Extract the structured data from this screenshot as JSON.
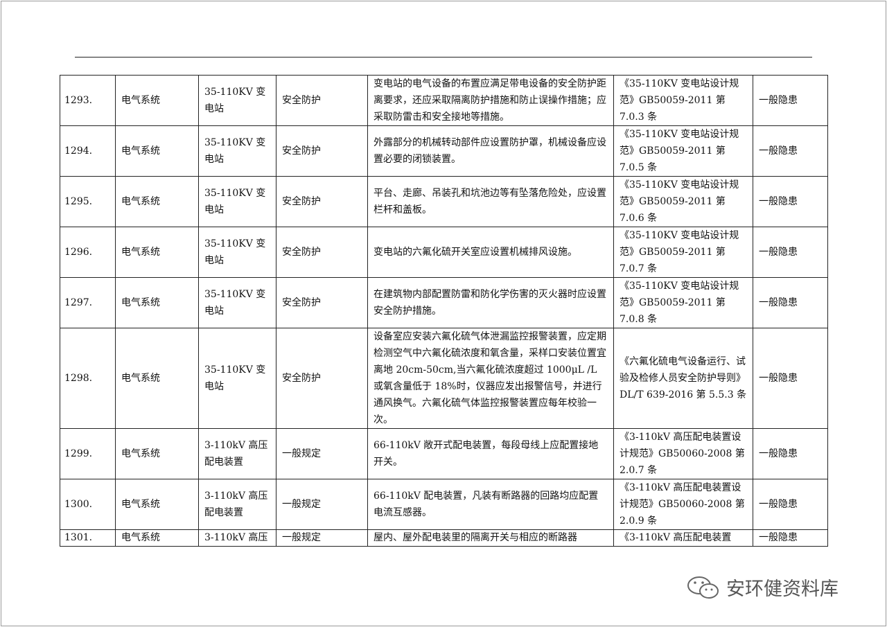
{
  "rows": [
    {
      "no": "1293.",
      "system": "电气系统",
      "facility": "35-110KV 变电站",
      "category": "安全防护",
      "requirement": "变电站的电气设备的布置应满足带电设备的安全防护距离要求，还应采取隔离防护措施和防止误操作措施；应采取防雷击和安全接地等措施。",
      "basis": "《35-110KV 变电站设计规范》GB50059-2011 第 7.0.3 条",
      "level": "一般隐患"
    },
    {
      "no": "1294.",
      "system": "电气系统",
      "facility": "35-110KV 变电站",
      "category": "安全防护",
      "requirement": "外露部分的机械转动部件应设置防护罩，机械设备应设置必要的闭锁装置。",
      "basis": "《35-110KV 变电站设计规范》GB50059-2011 第 7.0.5 条",
      "level": "一般隐患"
    },
    {
      "no": "1295.",
      "system": "电气系统",
      "facility": "35-110KV 变电站",
      "category": "安全防护",
      "requirement": "平台、走廊、吊装孔和坑池边等有坠落危险处，应设置栏杆和盖板。",
      "basis": "《35-110KV 变电站设计规范》GB50059-2011 第 7.0.6 条",
      "level": "一般隐患"
    },
    {
      "no": "1296.",
      "system": "电气系统",
      "facility": "35-110KV 变电站",
      "category": "安全防护",
      "requirement": "变电站的六氟化硫开关室应设置机械排风设施。",
      "basis": "《35-110KV 变电站设计规范》GB50059-2011 第 7.0.7 条",
      "level": "一般隐患"
    },
    {
      "no": "1297.",
      "system": "电气系统",
      "facility": "35-110KV 变电站",
      "category": "安全防护",
      "requirement": "在建筑物内部配置防雷和防化学伤害的灭火器时应设置安全防护措施。",
      "basis": "《35-110KV 变电站设计规范》GB50059-2011 第 7.0.8 条",
      "level": "一般隐患"
    },
    {
      "no": "1298.",
      "system": "电气系统",
      "facility": "35-110KV 变电站",
      "category": "安全防护",
      "requirement": "设备室应安装六氟化硫气体泄漏监控报警装置，应定期检测空气中六氟化硫浓度和氧含量，采样口安装位置宜离地 20cm-50cm,当六氟化硫浓度超过 1000μL /L 或氧含量低于 18%时，仪器应发出报警信号，并进行通风换气。六氟化硫气体监控报警装置应每年校验一次。",
      "basis": "《六氟化硫电气设备运行、试验及检修人员安全防护导则》DL/T 639-2016 第 5.5.3 条",
      "level": "一般隐患"
    },
    {
      "no": "1299.",
      "system": "电气系统",
      "facility": "3-110kV 高压配电装置",
      "category": "一般规定",
      "requirement": "66-110kV 敞开式配电装置，每段母线上应配置接地开关。",
      "basis": "《3-110kV 高压配电装置设计规范》GB50060-2008 第 2.0.7 条",
      "level": "一般隐患"
    },
    {
      "no": "1300.",
      "system": "电气系统",
      "facility": "3-110kV 高压配电装置",
      "category": "一般规定",
      "requirement": "66-110kV 配电装置，凡装有断路器的回路均应配置电流互感器。",
      "basis": "《3-110kV 高压配电装置设计规范》GB50060-2008 第 2.0.9 条",
      "level": "一般隐患"
    },
    {
      "no": "1301.",
      "system": "电气系统",
      "facility": "3-110kV 高压",
      "category": "一般规定",
      "requirement": "屋内、屋外配电装里的隔离开关与相应的断路器",
      "basis": "《3-110kV 高压配电装置",
      "level": "一般隐患"
    }
  ],
  "watermark": "安环健资料库",
  "watermark_icon": "wechat-icon"
}
